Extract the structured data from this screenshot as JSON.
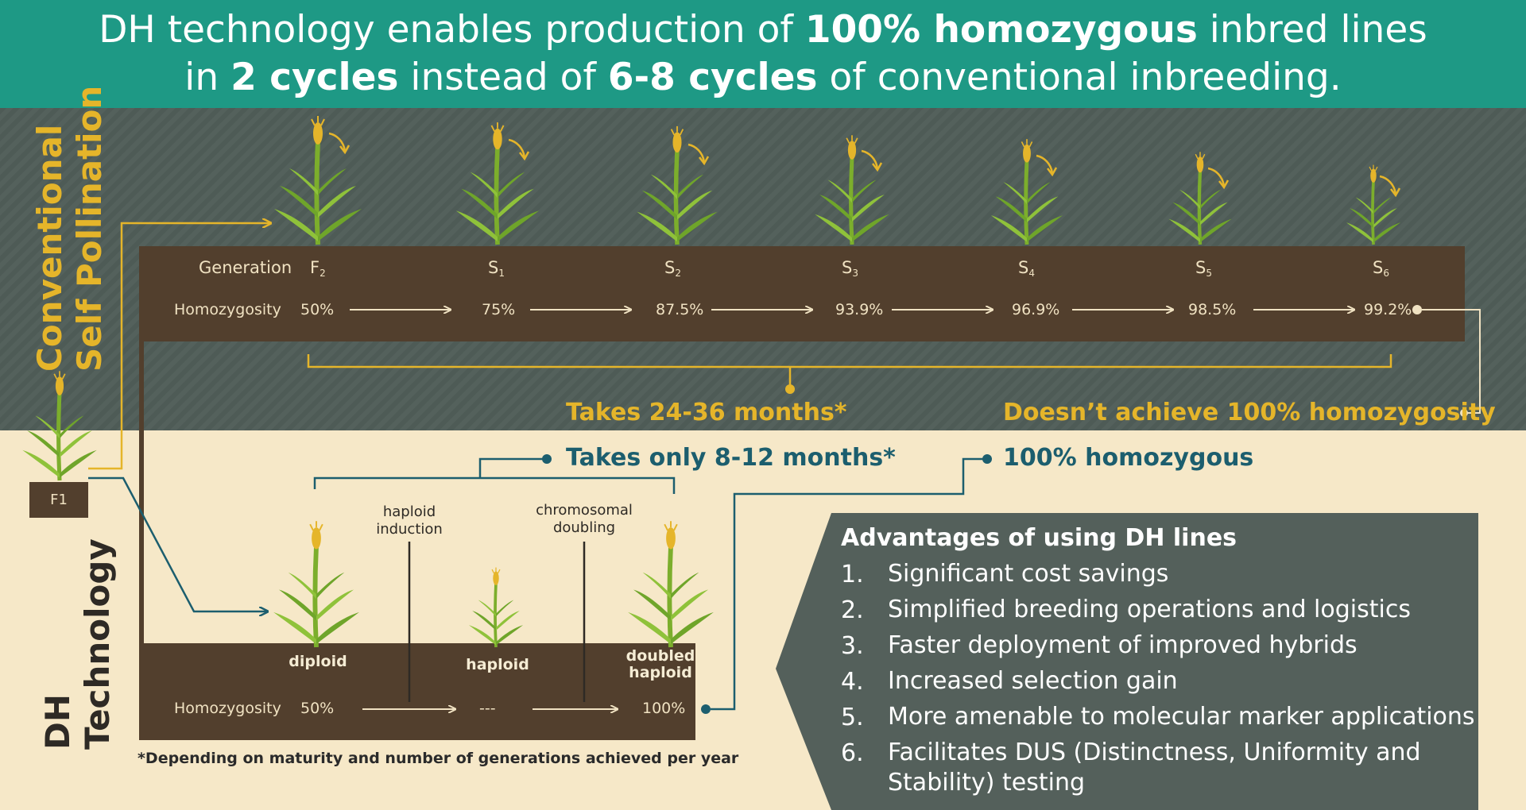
{
  "header": {
    "line1_pre": "DH technology enables production of ",
    "line1_bold": "100% homozygous",
    "line1_post": " inbred lines",
    "line2_pre": "in ",
    "line2_bold1": "2 cycles",
    "line2_mid": " instead of ",
    "line2_bold2": "6-8 cycles",
    "line2_post": " of conventional inbreeding."
  },
  "conventional": {
    "section_label_line1": "Conventional",
    "section_label_line2": "Self Pollination",
    "generation_label": "Generation",
    "homozygosity_label": "Homozygosity",
    "generations": [
      {
        "base": "F",
        "sub": "2",
        "homozygosity": "50%"
      },
      {
        "base": "S",
        "sub": "1",
        "homozygosity": "75%"
      },
      {
        "base": "S",
        "sub": "2",
        "homozygosity": "87.5%"
      },
      {
        "base": "S",
        "sub": "3",
        "homozygosity": "93.9%"
      },
      {
        "base": "S",
        "sub": "4",
        "homozygosity": "96.9%"
      },
      {
        "base": "S",
        "sub": "5",
        "homozygosity": "98.5%"
      },
      {
        "base": "S",
        "sub": "6",
        "homozygosity": "99.2%"
      }
    ],
    "duration_text": "Takes 24-36 months*",
    "result_text": "Doesn’t achieve 100% homozygosity"
  },
  "f1_label": "F1",
  "dh": {
    "section_label_line1": "DH",
    "section_label_line2": "Technology",
    "duration_text": "Takes only 8-12 months*",
    "result_text": "100% homozygous",
    "step1": "haploid\ninduction",
    "step2": "chromosomal\ndoubling",
    "stages": [
      {
        "label": "diploid",
        "homozygosity": "50%"
      },
      {
        "label": "haploid",
        "homozygosity": "---"
      },
      {
        "label": "doubled\nhaploid",
        "homozygosity": "100%"
      }
    ],
    "homozygosity_label": "Homozygosity"
  },
  "footnote": "*Depending on maturity and number of generations achieved per year",
  "advantages": {
    "title": "Advantages of using DH lines",
    "items": [
      {
        "num": "1.",
        "text": "Significant cost savings"
      },
      {
        "num": "2.",
        "text": "Simplified breeding operations and logistics"
      },
      {
        "num": "3.",
        "text": "Faster deployment of improved hybrids"
      },
      {
        "num": "4.",
        "text": "Increased selection gain"
      },
      {
        "num": "5.",
        "text": "More amenable to molecular marker applications"
      },
      {
        "num": "6.",
        "text": "Facilitates DUS (Distinctness, Uniformity and\nStability) testing"
      }
    ]
  },
  "colors": {
    "teal_header": "#1e9985",
    "gold": "#e5b52a",
    "dark_teal": "#1c5e6e",
    "band_brown": "#523f2d",
    "cream": "#f6e8c8",
    "panel_gray": "#54605b"
  }
}
